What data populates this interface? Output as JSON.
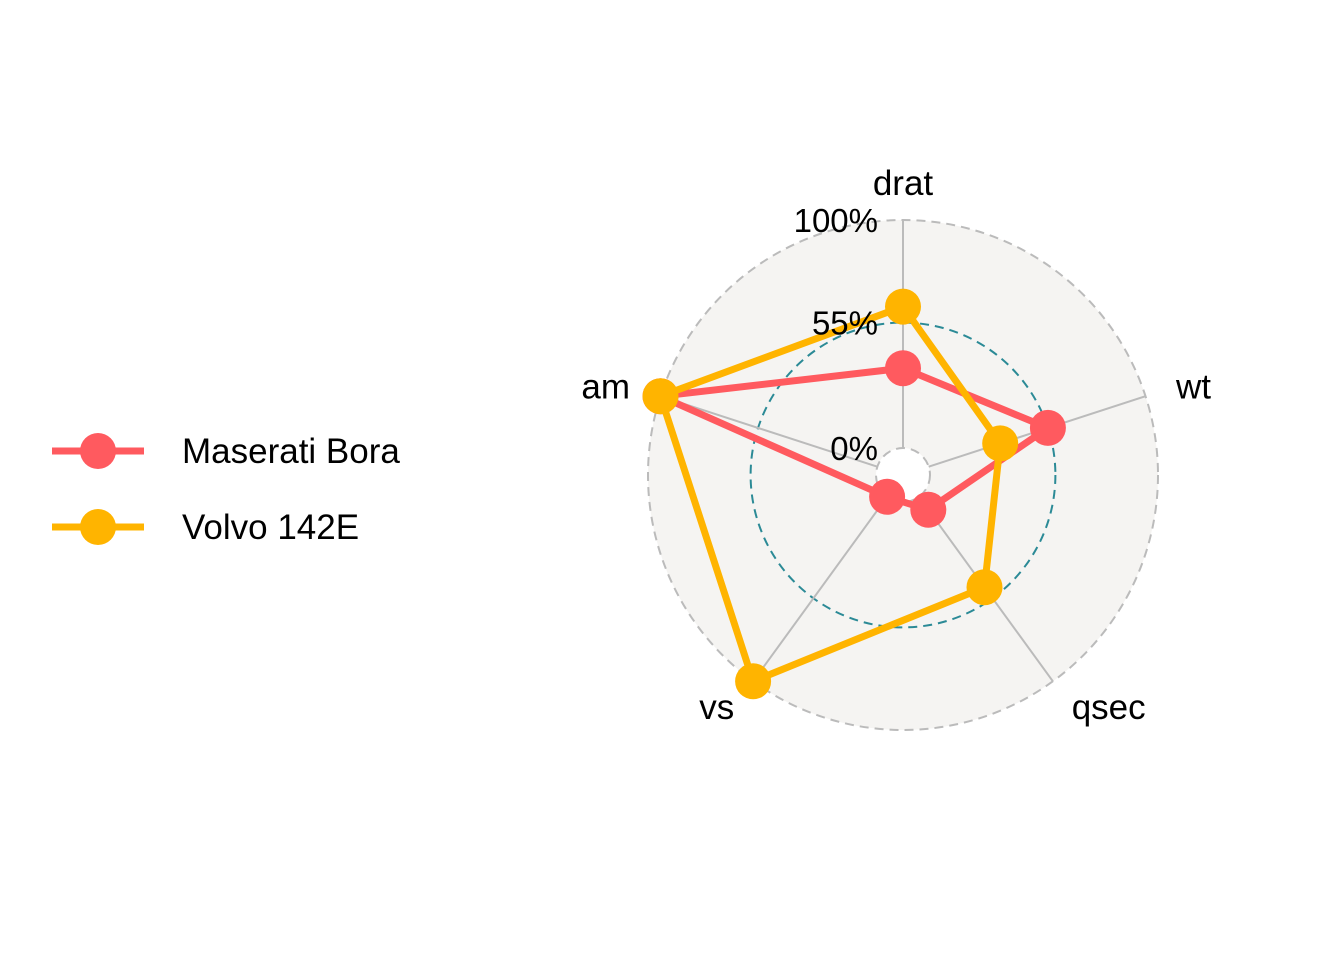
{
  "chart_data": {
    "type": "radar",
    "axes": [
      "drat",
      "wt",
      "qsec",
      "vs",
      "am"
    ],
    "grid_labels": [
      "0%",
      "55%",
      "100%"
    ],
    "grid_values": [
      0,
      0.55,
      1
    ],
    "series": [
      {
        "name": "Maserati Bora",
        "color": "#FF5A5F",
        "values": [
          0.35,
          0.55,
          0.07,
          0.0,
          1.0
        ]
      },
      {
        "name": "Volvo 142E",
        "color": "#FFB400",
        "values": [
          0.62,
          0.33,
          0.49,
          1.0,
          1.0
        ]
      }
    ],
    "legend_position": "left",
    "colors": {
      "background_circle": "#F5F4F2",
      "outer_grid": "#BBBBBB",
      "mid_grid": "#2B8A96",
      "axis_lines": "#BBBBBB"
    }
  }
}
